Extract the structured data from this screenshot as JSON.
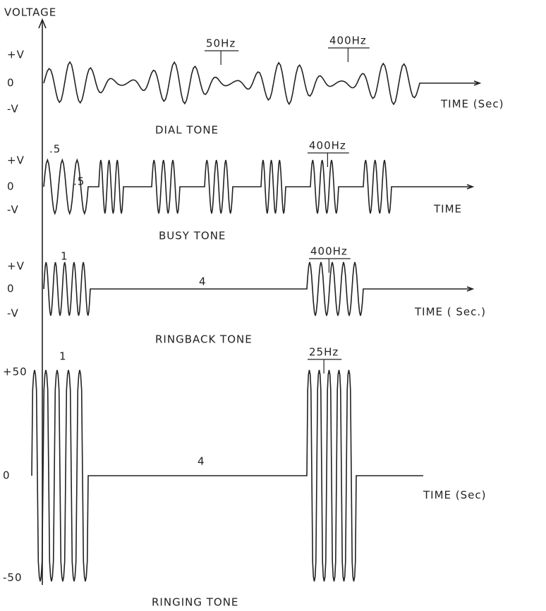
{
  "axis_label": "VOLTAGE",
  "panels": [
    {
      "title": "DIAL TONE",
      "y_labels": [
        "+V",
        "0",
        "-V"
      ],
      "x_label": "TIME  (Sec)",
      "annotations": [
        "50Hz",
        "400Hz"
      ]
    },
    {
      "title": "BUSY TONE",
      "y_labels": [
        "+V",
        "0",
        "-V"
      ],
      "x_label": "TIME",
      "annotations": [
        ".5",
        ".5",
        "400Hz"
      ]
    },
    {
      "title": "RINGBACK TONE",
      "y_labels": [
        "+V",
        "0",
        "-V"
      ],
      "x_label": "TIME  ( Sec.)",
      "annotations": [
        "1",
        "4",
        "400Hz"
      ]
    },
    {
      "title": "RINGING TONE",
      "y_labels": [
        "+50",
        "0",
        "-50"
      ],
      "x_label": "TIME  (Sec)",
      "annotations": [
        "1",
        "4",
        "25Hz"
      ]
    }
  ]
}
